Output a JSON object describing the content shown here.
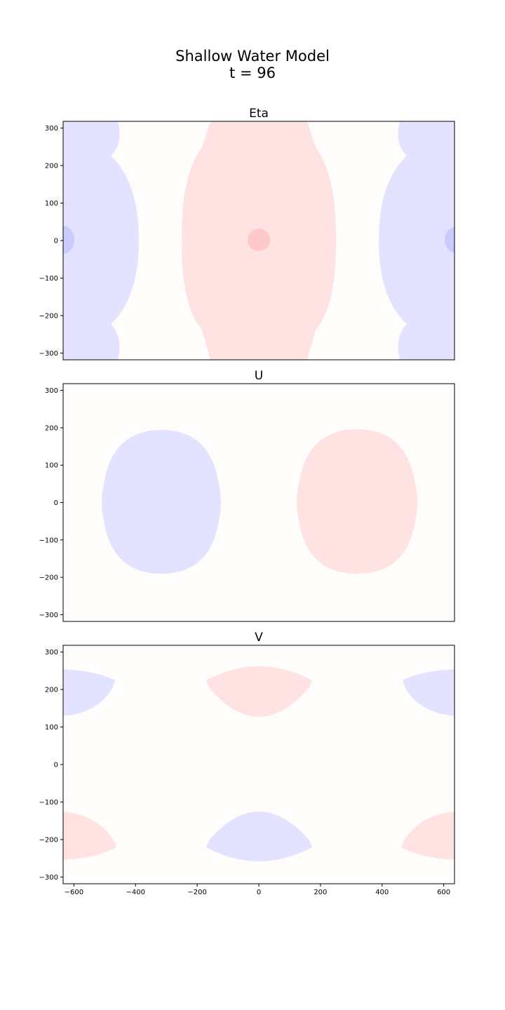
{
  "figure": {
    "title_line1": "Shallow Water Model",
    "title_line2": "t = 96",
    "colors": {
      "positive": "#ffe2e2",
      "negative": "#e3e3ff",
      "strong_positive": "#ffc9c9",
      "strong_negative": "#cacaff",
      "background": "#fffcfc"
    }
  },
  "chart_data": [
    {
      "type": "heatmap",
      "title": "Eta",
      "xlim": [
        -635,
        635
      ],
      "ylim": [
        -318,
        318
      ],
      "yticks": [
        300,
        200,
        100,
        0,
        -100,
        -200,
        -300
      ],
      "xticks": [],
      "regions": [
        {
          "sign": "positive",
          "center": [
            0,
            0
          ],
          "note": "central band"
        },
        {
          "sign": "strong_positive",
          "center": [
            0,
            0
          ]
        },
        {
          "sign": "negative",
          "center": [
            -635,
            0
          ]
        },
        {
          "sign": "negative",
          "center": [
            635,
            0
          ]
        },
        {
          "sign": "strong_negative",
          "center": [
            -635,
            0
          ]
        },
        {
          "sign": "strong_negative",
          "center": [
            635,
            0
          ]
        }
      ]
    },
    {
      "type": "heatmap",
      "title": "U",
      "xlim": [
        -635,
        635
      ],
      "ylim": [
        -318,
        318
      ],
      "yticks": [
        300,
        200,
        100,
        0,
        -100,
        -200,
        -300
      ],
      "xticks": [],
      "regions": [
        {
          "sign": "negative",
          "center": [
            -318,
            0
          ]
        },
        {
          "sign": "positive",
          "center": [
            318,
            0
          ]
        }
      ]
    },
    {
      "type": "heatmap",
      "title": "V",
      "xlim": [
        -635,
        635
      ],
      "ylim": [
        -318,
        318
      ],
      "yticks": [
        300,
        200,
        100,
        0,
        -100,
        -200,
        -300
      ],
      "xticks": [
        -600,
        -400,
        -200,
        0,
        200,
        400,
        600
      ],
      "regions": [
        {
          "sign": "positive",
          "center": [
            0,
            200
          ]
        },
        {
          "sign": "negative",
          "center": [
            0,
            -200
          ]
        },
        {
          "sign": "negative",
          "center": [
            -635,
            200
          ]
        },
        {
          "sign": "negative",
          "center": [
            635,
            200
          ]
        },
        {
          "sign": "positive",
          "center": [
            -635,
            -200
          ]
        },
        {
          "sign": "positive",
          "center": [
            635,
            -200
          ]
        }
      ]
    }
  ]
}
